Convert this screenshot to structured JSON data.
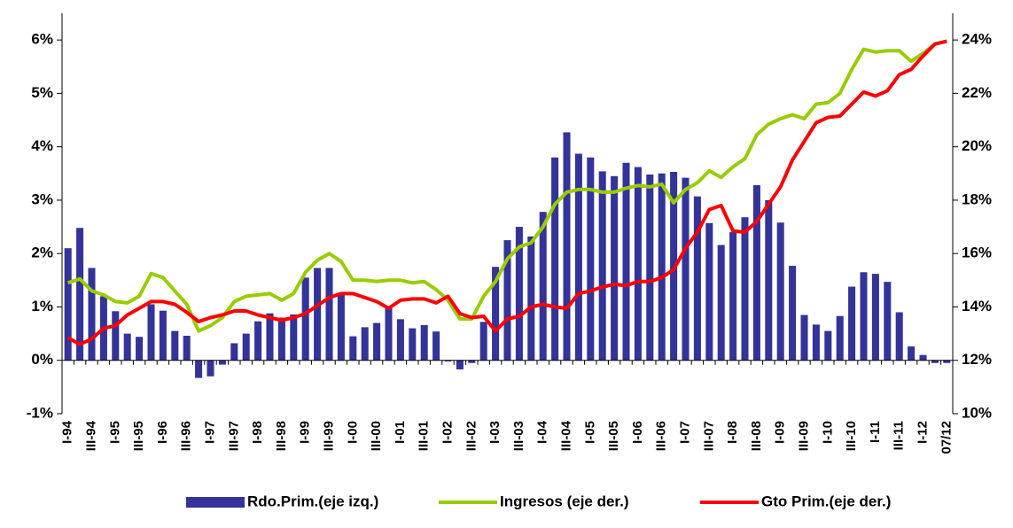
{
  "chart_data": {
    "type": "bar",
    "categories": [
      "I-94",
      null,
      "III-94",
      null,
      "I-95",
      null,
      "III-95",
      null,
      "I-96",
      null,
      "III-96",
      null,
      "I-97",
      null,
      "III-97",
      null,
      "I-98",
      null,
      "III-98",
      null,
      "I-99",
      null,
      "III-99",
      null,
      "I-00",
      null,
      "III-00",
      null,
      "I-01",
      null,
      "III-01",
      null,
      "I-02",
      null,
      "III-02",
      null,
      "I-03",
      null,
      "III-03",
      null,
      "I-04",
      null,
      "III-04",
      null,
      "I-05",
      null,
      "III-05",
      null,
      "I-06",
      null,
      "III-06",
      null,
      "I-07",
      null,
      "III-07",
      null,
      "I-08",
      null,
      "III-08",
      null,
      "I-09",
      null,
      "III-09",
      null,
      "I-10",
      null,
      "III-10",
      null,
      "I-11",
      null,
      "III-11",
      null,
      "I-12",
      null,
      "07/12"
    ],
    "series": [
      {
        "name": "Rdo.Prim.(eje izq.)",
        "type": "bar",
        "axis": "y",
        "color": "#333399",
        "values": [
          2.1,
          2.48,
          1.73,
          1.2,
          0.92,
          0.5,
          0.44,
          1.05,
          0.93,
          0.55,
          0.46,
          -0.33,
          -0.3,
          -0.08,
          0.32,
          0.5,
          0.73,
          0.88,
          0.8,
          0.86,
          1.55,
          1.73,
          1.73,
          1.25,
          0.45,
          0.62,
          0.7,
          1.0,
          0.77,
          0.6,
          0.66,
          0.54,
          -0.02,
          -0.17,
          -0.05,
          0.72,
          1.75,
          2.25,
          2.5,
          2.32,
          2.78,
          3.8,
          4.27,
          3.87,
          3.8,
          3.54,
          3.45,
          3.7,
          3.62,
          3.48,
          3.5,
          3.53,
          3.42,
          3.07,
          2.57,
          2.16,
          2.4,
          2.68,
          3.28,
          3.0,
          2.58,
          1.77,
          0.85,
          0.67,
          0.55,
          0.83,
          1.38,
          1.65,
          1.62,
          1.47,
          0.9,
          0.26,
          0.1,
          -0.05,
          -0.05
        ]
      },
      {
        "name": "Ingresos (eje der.)",
        "type": "line",
        "axis": "y2",
        "color": "#99cc00",
        "values": [
          14.9,
          15.05,
          14.6,
          14.45,
          14.2,
          14.15,
          14.4,
          15.25,
          15.1,
          14.6,
          14.1,
          13.1,
          13.3,
          13.6,
          14.2,
          14.4,
          14.45,
          14.5,
          14.25,
          14.5,
          15.3,
          15.75,
          16.0,
          15.7,
          15.0,
          15.0,
          14.95,
          15.0,
          15.0,
          14.9,
          14.95,
          14.65,
          14.25,
          13.55,
          13.55,
          14.4,
          14.95,
          15.8,
          16.25,
          16.4,
          17.0,
          17.85,
          18.3,
          18.4,
          18.4,
          18.3,
          18.3,
          18.45,
          18.55,
          18.5,
          18.6,
          17.9,
          18.4,
          18.65,
          19.1,
          18.85,
          19.25,
          19.55,
          20.45,
          20.85,
          21.05,
          21.2,
          21.05,
          21.6,
          21.65,
          22.0,
          22.9,
          23.65,
          23.55,
          23.6,
          23.6,
          23.2,
          23.5,
          23.85,
          23.95
        ]
      },
      {
        "name": "Gto Prim.(eje der.)",
        "type": "line",
        "axis": "y2",
        "color": "#ff0000",
        "values": [
          12.85,
          12.6,
          12.8,
          13.2,
          13.3,
          13.7,
          13.95,
          14.2,
          14.2,
          14.1,
          13.8,
          13.45,
          13.6,
          13.7,
          13.85,
          13.85,
          13.7,
          13.6,
          13.5,
          13.6,
          13.75,
          14.05,
          14.35,
          14.5,
          14.5,
          14.35,
          14.2,
          13.95,
          14.25,
          14.3,
          14.3,
          14.15,
          14.4,
          13.75,
          13.6,
          13.65,
          13.1,
          13.55,
          13.65,
          14.0,
          14.1,
          14.0,
          13.95,
          14.5,
          14.6,
          14.75,
          14.85,
          14.8,
          14.95,
          14.95,
          15.1,
          15.4,
          16.2,
          16.8,
          17.65,
          17.8,
          16.85,
          16.8,
          17.2,
          17.85,
          18.5,
          19.5,
          20.2,
          20.9,
          21.1,
          21.15,
          21.6,
          22.05,
          21.9,
          22.1,
          22.7,
          22.9,
          23.4,
          23.85,
          23.95
        ]
      }
    ],
    "ylim": [
      -1,
      6.5
    ],
    "yticks": [
      {
        "value": -1,
        "label": "-1%"
      },
      {
        "value": 0,
        "label": "0%"
      },
      {
        "value": 1,
        "label": "1%"
      },
      {
        "value": 2,
        "label": "2%"
      },
      {
        "value": 3,
        "label": "3%"
      },
      {
        "value": 4,
        "label": "4%"
      },
      {
        "value": 5,
        "label": "5%"
      },
      {
        "value": 6,
        "label": "6%"
      }
    ],
    "y2lim": [
      10,
      25
    ],
    "y2ticks": [
      {
        "value": 10,
        "label": "10%"
      },
      {
        "value": 12,
        "label": "12%"
      },
      {
        "value": 14,
        "label": "14%"
      },
      {
        "value": 16,
        "label": "16%"
      },
      {
        "value": 18,
        "label": "18%"
      },
      {
        "value": 20,
        "label": "20%"
      },
      {
        "value": 22,
        "label": "22%"
      },
      {
        "value": 24,
        "label": "24%"
      }
    ],
    "grid": false,
    "legend": "bottom"
  }
}
